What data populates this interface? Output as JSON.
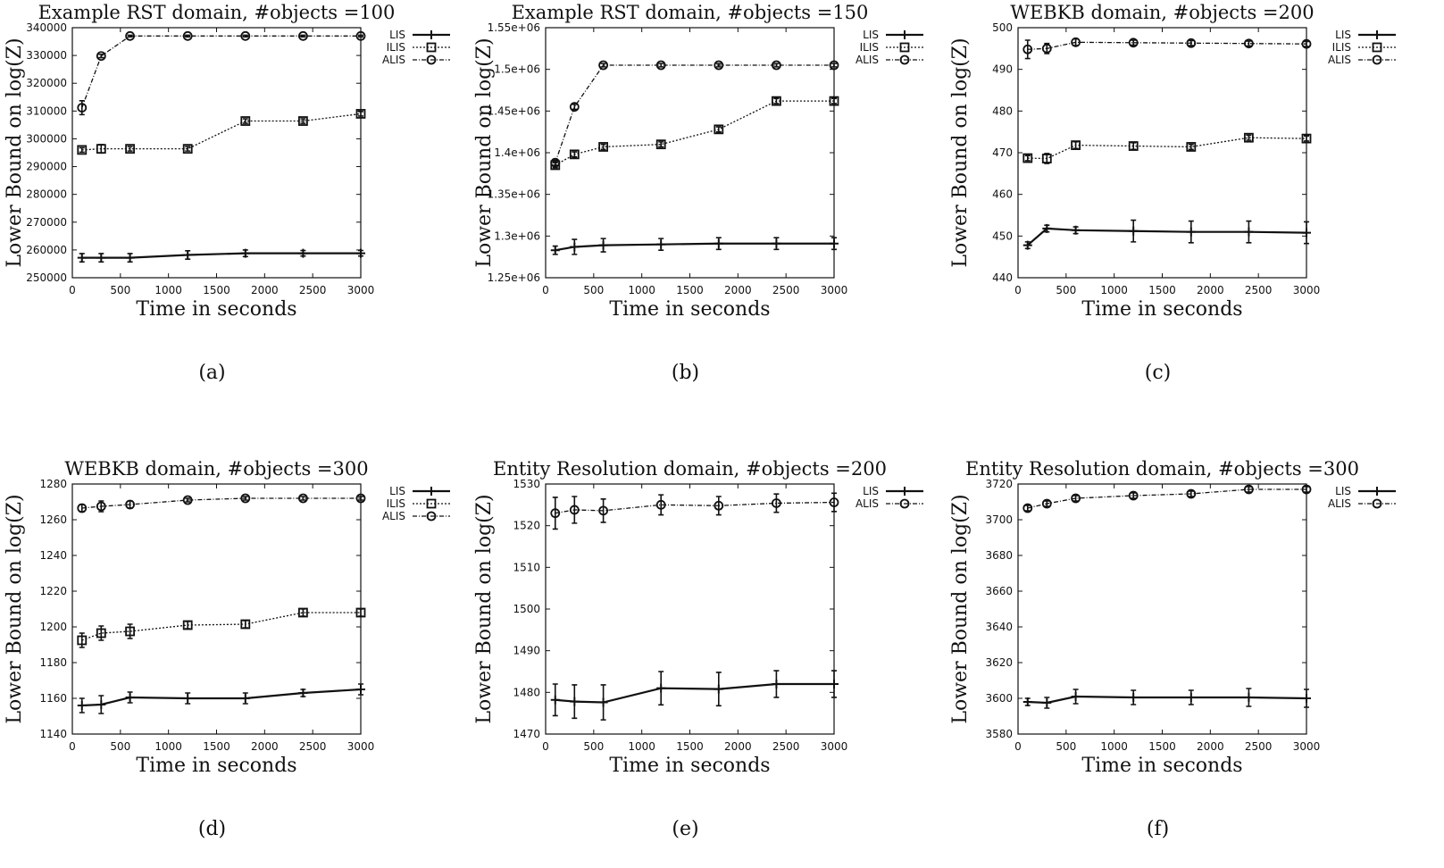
{
  "chart_data": [
    {
      "type": "line",
      "caption": "(a)",
      "title": "Example RST domain, #objects =100",
      "xlabel": "Time in seconds",
      "ylabel": "Lower Bound on log(Z)",
      "xlim": [
        0,
        3000
      ],
      "ylim": [
        250000,
        340000
      ],
      "xticks": [
        0,
        500,
        1000,
        1500,
        2000,
        2500,
        3000
      ],
      "xtick_labels": [
        "0",
        "500",
        "1000",
        "1500",
        "2000",
        "2500",
        "3000"
      ],
      "yticks": [
        250000,
        260000,
        270000,
        280000,
        290000,
        300000,
        310000,
        320000,
        330000,
        340000
      ],
      "ytick_labels": [
        "250000",
        "260000",
        "270000",
        "280000",
        "290000",
        "300000",
        "310000",
        "320000",
        "330000",
        "340000"
      ],
      "x": [
        100,
        300,
        600,
        1200,
        1800,
        2400,
        3000
      ],
      "series": [
        {
          "name": "LIS",
          "style": "LIS",
          "values": [
            257200,
            257200,
            257200,
            258200,
            258800,
            258800,
            258800
          ],
          "err": [
            1500,
            1500,
            1500,
            1500,
            1200,
            1000,
            1000
          ]
        },
        {
          "name": "ILIS",
          "style": "ILIS",
          "values": [
            296000,
            296400,
            296400,
            296400,
            306400,
            306400,
            309000
          ],
          "err": [
            800,
            1500,
            800,
            800,
            800,
            800,
            800
          ]
        },
        {
          "name": "ALIS",
          "style": "ALIS",
          "values": [
            311200,
            329800,
            337000,
            337000,
            337000,
            337000,
            337000
          ],
          "err": [
            2500,
            600,
            300,
            300,
            300,
            300,
            300
          ]
        }
      ]
    },
    {
      "type": "line",
      "caption": "(b)",
      "title": "Example RST domain, #objects =150",
      "xlabel": "Time in seconds",
      "ylabel": "Lower Bound on log(Z)",
      "xlim": [
        0,
        3000
      ],
      "ylim": [
        1250000,
        1550000
      ],
      "xticks": [
        0,
        500,
        1000,
        1500,
        2000,
        2500,
        3000
      ],
      "xtick_labels": [
        "0",
        "500",
        "1000",
        "1500",
        "2000",
        "2500",
        "3000"
      ],
      "yticks": [
        1250000,
        1300000,
        1350000,
        1400000,
        1450000,
        1500000,
        1550000
      ],
      "ytick_labels": [
        "1.25e+06",
        "1.3e+06",
        "1.35e+06",
        "1.4e+06",
        "1.45e+06",
        "1.5e+06",
        "1.55e+06"
      ],
      "x": [
        100,
        300,
        600,
        1200,
        1800,
        2400,
        3000
      ],
      "series": [
        {
          "name": "LIS",
          "style": "LIS",
          "values": [
            1283000,
            1287000,
            1289000,
            1290000,
            1291000,
            1291000,
            1291000
          ],
          "err": [
            5000,
            9000,
            8000,
            7000,
            7000,
            7000,
            7000
          ]
        },
        {
          "name": "ILIS",
          "style": "ILIS",
          "values": [
            1385000,
            1398000,
            1407000,
            1410000,
            1428000,
            1462000,
            1462000
          ],
          "err": [
            3000,
            3000,
            3000,
            3000,
            3000,
            3000,
            3000
          ]
        },
        {
          "name": "ALIS",
          "style": "ALIS",
          "values": [
            1388000,
            1455000,
            1505000,
            1505000,
            1505000,
            1505000,
            1505000
          ],
          "err": [
            3000,
            3000,
            2000,
            2000,
            2000,
            2000,
            2000
          ]
        }
      ]
    },
    {
      "type": "line",
      "caption": "(c)",
      "title": "WEBKB domain, #objects =200",
      "xlabel": "Time in seconds",
      "ylabel": "Lower Bound on log(Z)",
      "xlim": [
        0,
        3000
      ],
      "ylim": [
        440,
        500
      ],
      "xticks": [
        0,
        500,
        1000,
        1500,
        2000,
        2500,
        3000
      ],
      "xtick_labels": [
        "0",
        "500",
        "1000",
        "1500",
        "2000",
        "2500",
        "3000"
      ],
      "yticks": [
        440,
        450,
        460,
        470,
        480,
        490,
        500
      ],
      "ytick_labels": [
        "440",
        "450",
        "460",
        "470",
        "480",
        "490",
        "500"
      ],
      "x": [
        100,
        300,
        600,
        1200,
        1800,
        2400,
        3000
      ],
      "series": [
        {
          "name": "LIS",
          "style": "LIS",
          "values": [
            447.8,
            451.8,
            451.4,
            451.2,
            451.0,
            451.0,
            450.8
          ],
          "err": [
            0.8,
            0.8,
            0.8,
            2.6,
            2.6,
            2.6,
            2.6
          ]
        },
        {
          "name": "ILIS",
          "style": "ILIS",
          "values": [
            468.7,
            468.6,
            471.8,
            471.6,
            471.4,
            473.6,
            473.4
          ],
          "err": [
            0.6,
            1.2,
            0.8,
            0.8,
            0.6,
            0.6,
            0.6
          ]
        },
        {
          "name": "ALIS",
          "style": "ALIS",
          "values": [
            494.8,
            495.0,
            496.5,
            496.4,
            496.3,
            496.2,
            496.1
          ],
          "err": [
            2.2,
            1.2,
            0.8,
            0.6,
            0.6,
            0.6,
            0.6
          ]
        }
      ]
    },
    {
      "type": "line",
      "caption": "(d)",
      "title": "WEBKB domain, #objects =300",
      "xlabel": "Time in seconds",
      "ylabel": "Lower Bound on log(Z)",
      "xlim": [
        0,
        3000
      ],
      "ylim": [
        1140,
        1280
      ],
      "xticks": [
        0,
        500,
        1000,
        1500,
        2000,
        2500,
        3000
      ],
      "xtick_labels": [
        "0",
        "500",
        "1000",
        "1500",
        "2000",
        "2500",
        "3000"
      ],
      "yticks": [
        1140,
        1160,
        1180,
        1200,
        1220,
        1240,
        1260,
        1280
      ],
      "ytick_labels": [
        "1140",
        "1160",
        "1180",
        "1200",
        "1220",
        "1240",
        "1260",
        "1280"
      ],
      "x": [
        100,
        300,
        600,
        1200,
        1800,
        2400,
        3000
      ],
      "series": [
        {
          "name": "LIS",
          "style": "LIS",
          "values": [
            1156,
            1156.5,
            1160.5,
            1160,
            1160,
            1163,
            1165
          ],
          "err": [
            4,
            5,
            3,
            3,
            3,
            2,
            3
          ]
        },
        {
          "name": "ILIS",
          "style": "ILIS",
          "values": [
            1192.5,
            1196.5,
            1197.5,
            1201,
            1201.5,
            1208,
            1208
          ],
          "err": [
            4,
            4,
            4,
            2,
            2,
            2,
            2
          ]
        },
        {
          "name": "ALIS",
          "style": "ALIS",
          "values": [
            1266.5,
            1267.5,
            1268.5,
            1271,
            1272,
            1272,
            1272
          ],
          "err": [
            2,
            3,
            2,
            1,
            1,
            1,
            1
          ]
        }
      ]
    },
    {
      "type": "line",
      "caption": "(e)",
      "title": "Entity Resolution domain, #objects =200",
      "xlabel": "Time in seconds",
      "ylabel": "Lower Bound on log(Z)",
      "xlim": [
        0,
        3000
      ],
      "ylim": [
        1470,
        1530
      ],
      "xticks": [
        0,
        500,
        1000,
        1500,
        2000,
        2500,
        3000
      ],
      "xtick_labels": [
        "0",
        "500",
        "1000",
        "1500",
        "2000",
        "2500",
        "3000"
      ],
      "yticks": [
        1470,
        1480,
        1490,
        1500,
        1510,
        1520,
        1530
      ],
      "ytick_labels": [
        "1470",
        "1480",
        "1490",
        "1500",
        "1510",
        "1520",
        "1530"
      ],
      "x": [
        100,
        300,
        600,
        1200,
        1800,
        2400,
        3000
      ],
      "series": [
        {
          "name": "LIS",
          "style": "LIS",
          "values": [
            1478.2,
            1477.8,
            1477.6,
            1481.0,
            1480.8,
            1482.0,
            1482.0
          ],
          "err": [
            3.8,
            4.0,
            4.2,
            4.0,
            4.0,
            3.2,
            3.2
          ]
        },
        {
          "name": "ALIS",
          "style": "ALIS",
          "values": [
            1523.0,
            1523.8,
            1523.6,
            1525.0,
            1524.8,
            1525.4,
            1525.6
          ],
          "err": [
            3.8,
            3.2,
            2.8,
            2.4,
            2.2,
            2.2,
            2.2
          ]
        }
      ]
    },
    {
      "type": "line",
      "caption": "(f)",
      "title": "Entity Resolution domain, #objects =300",
      "xlabel": "Time in seconds",
      "ylabel": "Lower Bound on log(Z)",
      "xlim": [
        0,
        3000
      ],
      "ylim": [
        3580,
        3720
      ],
      "xticks": [
        0,
        500,
        1000,
        1500,
        2000,
        2500,
        3000
      ],
      "xtick_labels": [
        "0",
        "500",
        "1000",
        "1500",
        "2000",
        "2500",
        "3000"
      ],
      "yticks": [
        3580,
        3600,
        3620,
        3640,
        3660,
        3680,
        3700,
        3720
      ],
      "ytick_labels": [
        "3580",
        "3600",
        "3620",
        "3640",
        "3660",
        "3680",
        "3700",
        "3720"
      ],
      "x": [
        100,
        300,
        600,
        1200,
        1800,
        2400,
        3000
      ],
      "series": [
        {
          "name": "LIS",
          "style": "LIS",
          "values": [
            3598,
            3597.5,
            3601,
            3600.5,
            3600.5,
            3600.5,
            3600
          ],
          "err": [
            2,
            3,
            4,
            4,
            4,
            5,
            5
          ]
        },
        {
          "name": "ALIS",
          "style": "ALIS",
          "values": [
            3706.5,
            3709,
            3712,
            3713.5,
            3714.5,
            3717,
            3717
          ],
          "err": [
            1.5,
            1.5,
            1.5,
            1.5,
            1.5,
            1.5,
            1.5
          ]
        }
      ]
    }
  ]
}
